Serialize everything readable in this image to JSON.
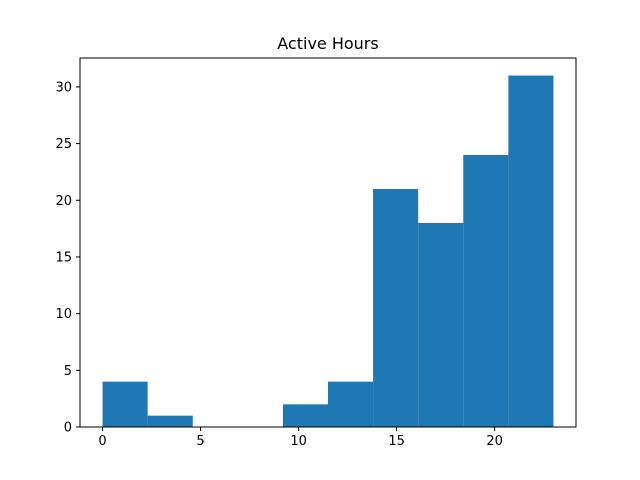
{
  "chart_data": {
    "type": "bar",
    "title": "Active Hours",
    "xlabel": "",
    "ylabel": "",
    "bins": [
      {
        "x0": 0.0,
        "x1": 2.3,
        "count": 4
      },
      {
        "x0": 2.3,
        "x1": 4.6,
        "count": 1
      },
      {
        "x0": 4.6,
        "x1": 6.9,
        "count": 0
      },
      {
        "x0": 6.9,
        "x1": 9.2,
        "count": 0
      },
      {
        "x0": 9.2,
        "x1": 11.5,
        "count": 2
      },
      {
        "x0": 11.5,
        "x1": 13.8,
        "count": 4
      },
      {
        "x0": 13.8,
        "x1": 16.1,
        "count": 21
      },
      {
        "x0": 16.1,
        "x1": 18.4,
        "count": 18
      },
      {
        "x0": 18.4,
        "x1": 20.7,
        "count": 24
      },
      {
        "x0": 20.7,
        "x1": 23.0,
        "count": 31
      }
    ],
    "xlim": [
      -1.15,
      24.15
    ],
    "ylim": [
      0,
      32.55
    ],
    "xticks": [
      0,
      5,
      10,
      15,
      20
    ],
    "yticks": [
      0,
      5,
      10,
      15,
      20,
      25,
      30
    ],
    "bar_color": "#1f77b4",
    "grid": false,
    "legend": "none"
  }
}
